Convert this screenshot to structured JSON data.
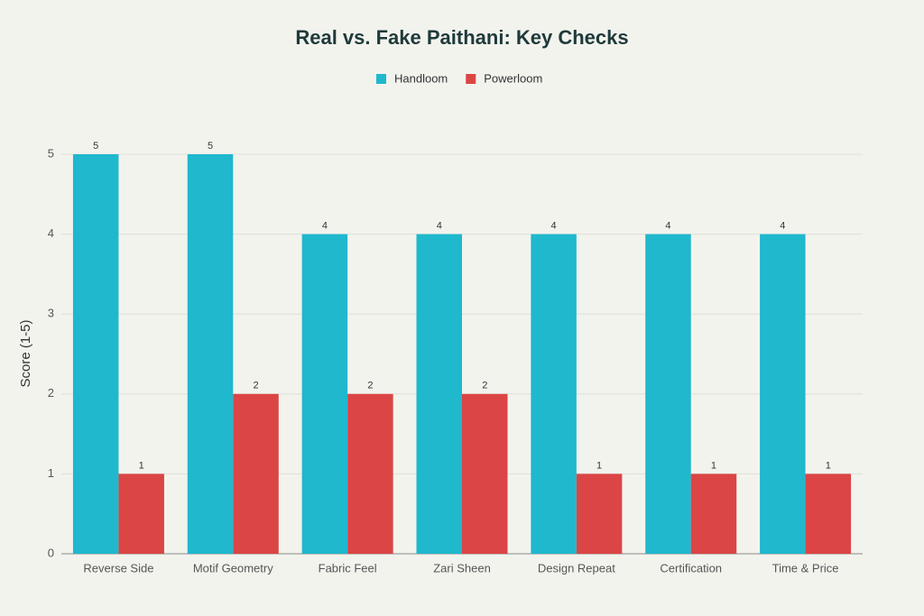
{
  "chart_data": {
    "type": "bar",
    "title": "Real vs. Fake Paithani: Key Checks",
    "y_label": "Score (1-5)",
    "categories": [
      "Reverse Side",
      "Motif Geometry",
      "Fabric Feel",
      "Zari Sheen",
      "Design Repeat",
      "Certification",
      "Time & Price"
    ],
    "series": [
      {
        "name": "Handloom",
        "color": "#1fb8cd",
        "values": [
          5,
          5,
          4,
          4,
          4,
          4,
          4
        ]
      },
      {
        "name": "Powerloom",
        "color": "#db4545",
        "values": [
          1,
          2,
          2,
          2,
          1,
          1,
          1
        ]
      }
    ],
    "ylim": [
      0,
      5
    ],
    "yticks": [
      0,
      1,
      2,
      3,
      4,
      5
    ],
    "grid": true,
    "legend": "top"
  }
}
